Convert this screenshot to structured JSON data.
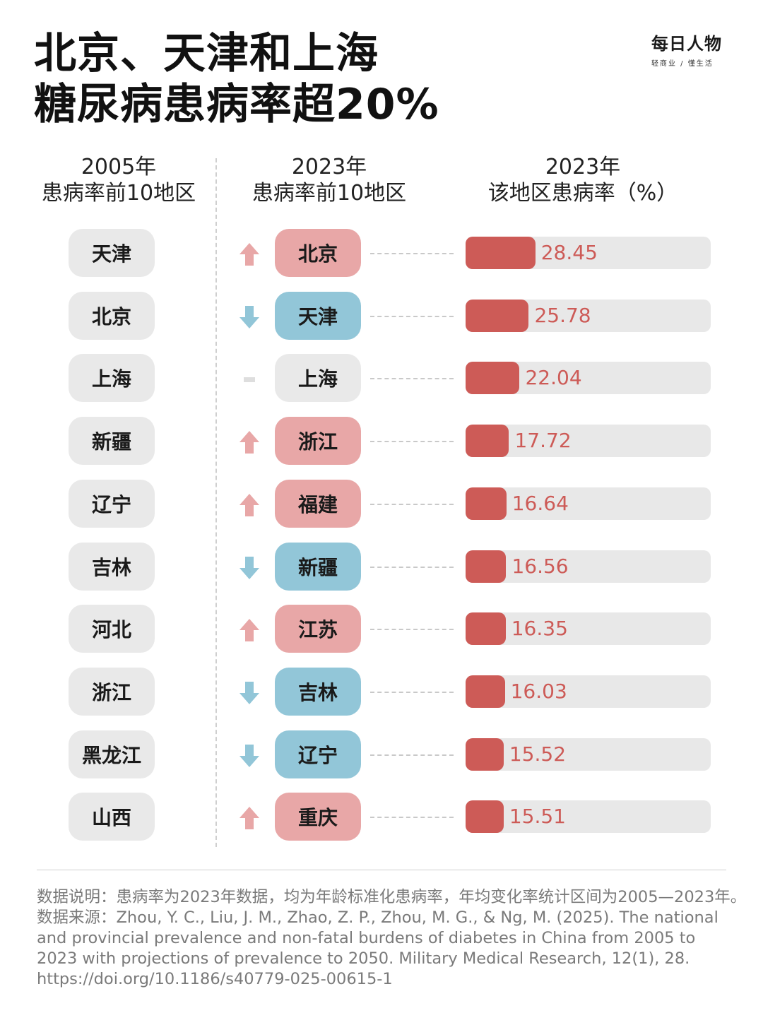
{
  "title_line1": "北京、天津和上海",
  "title_line2": "糖尿病患病率超20%",
  "logo": {
    "main": "每日人物",
    "sub": "轻商业 / 懂生活"
  },
  "headers": {
    "col1_line1": "2005年",
    "col1_line2": "患病率前10地区",
    "col2_line1": "2023年",
    "col2_line2": "患病率前10地区",
    "col3_line1": "2023年",
    "col3_line2": "该地区患病率（%）"
  },
  "colors": {
    "up": "#e8a7a7",
    "down": "#92c6d8",
    "same": "#e9e9e9",
    "bar": "#cd5b57",
    "track": "#e8e8e8"
  },
  "chart_data": {
    "type": "bar",
    "title": "2023年该地区患病率（%）",
    "unit": "%",
    "xlim": [
      0,
      100
    ],
    "regions_2005": [
      "天津",
      "北京",
      "上海",
      "新疆",
      "辽宁",
      "吉林",
      "河北",
      "浙江",
      "黑龙江",
      "山西"
    ],
    "categories": [
      "北京",
      "天津",
      "上海",
      "浙江",
      "福建",
      "新疆",
      "江苏",
      "吉林",
      "辽宁",
      "重庆"
    ],
    "trend": [
      "up",
      "down",
      "same",
      "up",
      "up",
      "down",
      "up",
      "down",
      "down",
      "up"
    ],
    "values": [
      28.45,
      25.78,
      22.04,
      17.72,
      16.64,
      16.56,
      16.35,
      16.03,
      15.52,
      15.51
    ]
  },
  "notes": {
    "line1": "数据说明：患病率为2023年数据，均为年龄标准化患病率，年均变化率统计区间为2005—2023年。",
    "source_lines": [
      "数据来源：Zhou, Y. C., Liu, J. M., Zhao, Z. P., Zhou, M. G., & Ng, M. (2025). The national",
      "and provincial prevalence and non-fatal burdens of diabetes in China from 2005 to",
      "2023 with projections of prevalence to 2050. Military Medical Research, 12(1), 28.",
      "https://doi.org/10.1186/s40779-025-00615-1"
    ]
  }
}
